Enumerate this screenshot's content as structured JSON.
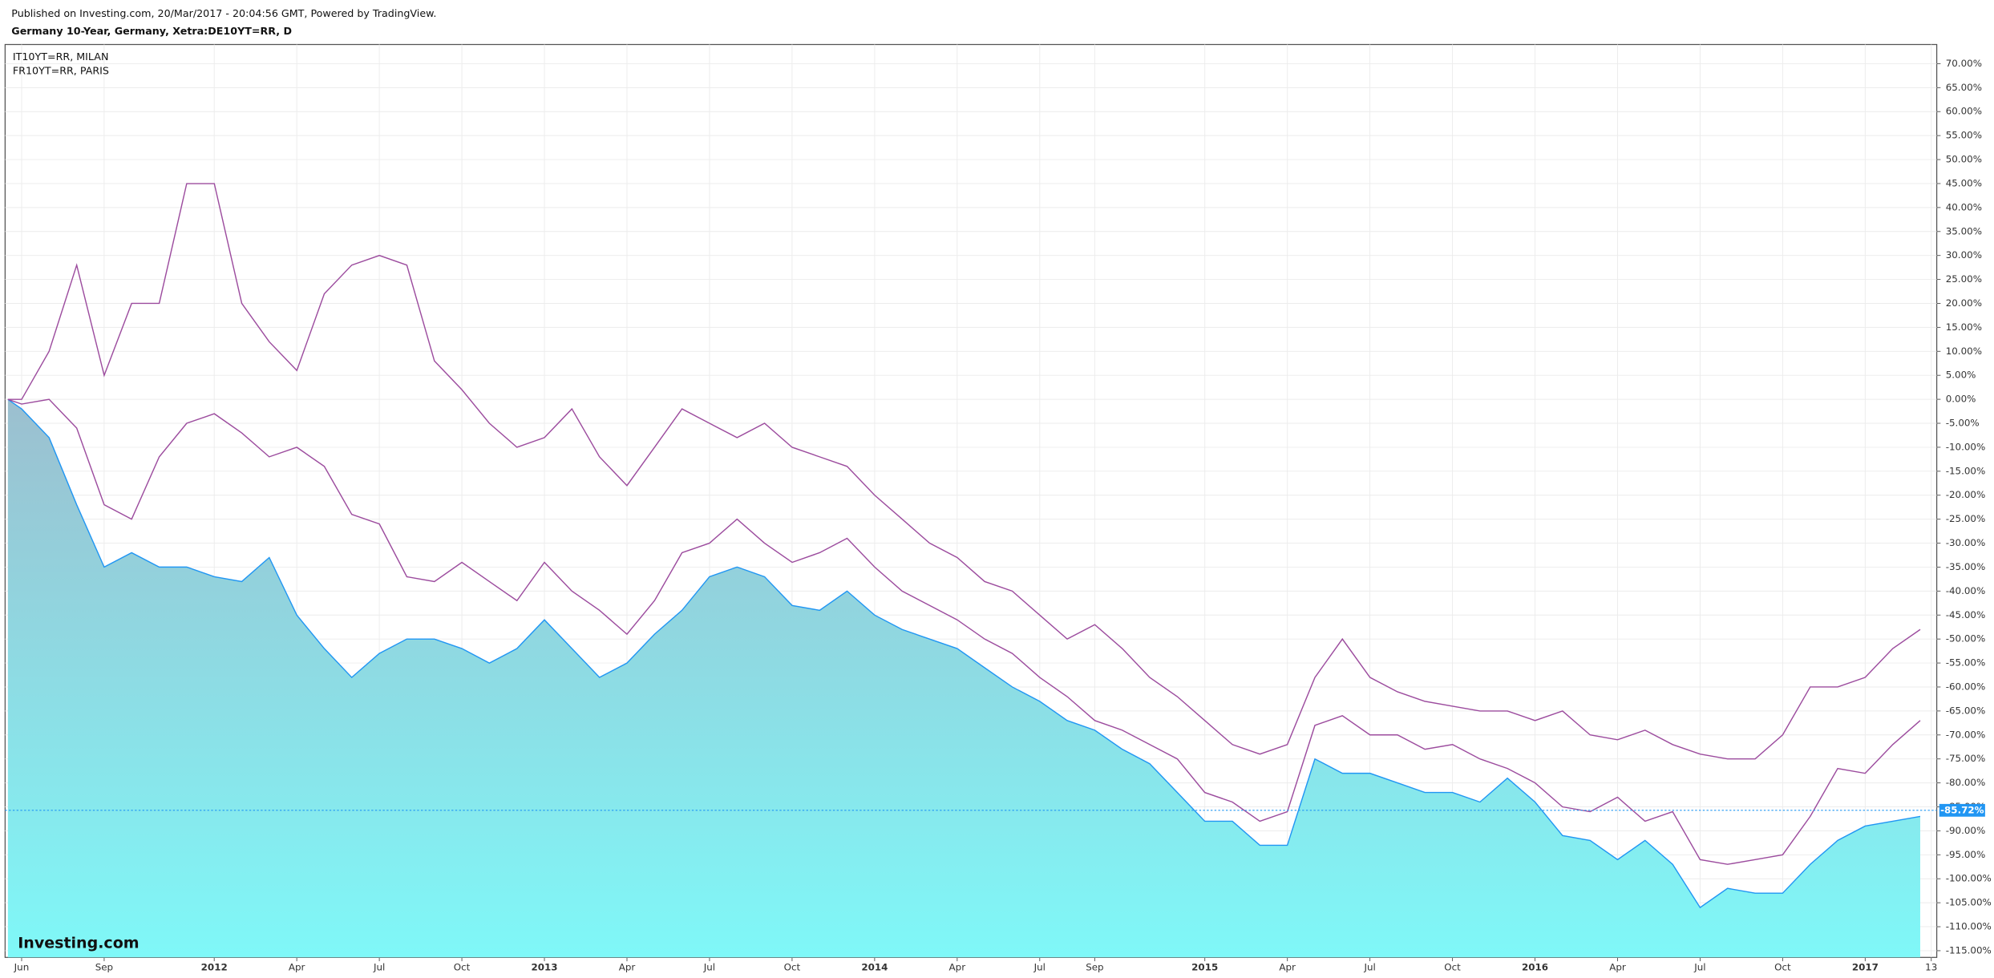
{
  "chart_data": {
    "type": "line",
    "published": "Published on Investing.com, 20/Mar/2017 - 20:04:56 GMT, Powered by TradingView.",
    "title": "Germany 10-Year, Germany, Xetra:DE10YT=RR, D",
    "watermark": "Investing.com",
    "x": [
      -0.5,
      0,
      1,
      2,
      3,
      4,
      5,
      6,
      7,
      8,
      9,
      10,
      11,
      12,
      13,
      14,
      15,
      16,
      17,
      18,
      19,
      20,
      21,
      22,
      23,
      24,
      25,
      26,
      27,
      28,
      29,
      30,
      31,
      32,
      33,
      34,
      35,
      36,
      37,
      38,
      39,
      40,
      41,
      42,
      43,
      44,
      45,
      46,
      47,
      48,
      49,
      50,
      51,
      52,
      53,
      54,
      55,
      56,
      57,
      58,
      59,
      60,
      61,
      62,
      63,
      64,
      65,
      66,
      67,
      68,
      69
    ],
    "series": [
      {
        "area": true,
        "color": "#2196f3",
        "values": [
          0,
          -2,
          -8,
          -22,
          -35,
          -32,
          -35,
          -35,
          -37,
          -38,
          -33,
          -45,
          -52,
          -58,
          -53,
          -50,
          -50,
          -52,
          -55,
          -52,
          -46,
          -52,
          -58,
          -55,
          -49,
          -44,
          -37,
          -35,
          -37,
          -43,
          -44,
          -40,
          -45,
          -48,
          -50,
          -52,
          -56,
          -60,
          -63,
          -67,
          -69,
          -73,
          -76,
          -82,
          -88,
          -88,
          -93,
          -93,
          -75,
          -78,
          -78,
          -80,
          -82,
          -82,
          -84,
          -79,
          -84,
          -91,
          -92,
          -96,
          -92,
          -97,
          -106,
          -102,
          -103,
          -103,
          -97,
          -92,
          -89,
          -88,
          -87
        ]
      },
      {
        "name": "IT10YT=RR, MILAN",
        "color": "#9c4c9e",
        "values": [
          0,
          0,
          10,
          28,
          5,
          20,
          20,
          45,
          45,
          20,
          12,
          6,
          22,
          28,
          30,
          28,
          8,
          2,
          -5,
          -10,
          -8,
          -2,
          -12,
          -18,
          -10,
          -2,
          -5,
          -8,
          -5,
          -10,
          -12,
          -14,
          -20,
          -25,
          -30,
          -33,
          -38,
          -40,
          -45,
          -50,
          -47,
          -52,
          -58,
          -62,
          -67,
          -72,
          -74,
          -72,
          -58,
          -50,
          -58,
          -61,
          -63,
          -64,
          -65,
          -65,
          -67,
          -65,
          -70,
          -71,
          -69,
          -72,
          -74,
          -75,
          -75,
          -70,
          -60,
          -60,
          -58,
          -52,
          -48
        ]
      },
      {
        "name": "FR10YT=RR, PARIS",
        "color": "#9c4c9e",
        "values": [
          0,
          -1,
          0,
          -6,
          -22,
          -25,
          -12,
          -5,
          -3,
          -7,
          -12,
          -10,
          -14,
          -24,
          -26,
          -37,
          -38,
          -34,
          -38,
          -42,
          -34,
          -40,
          -44,
          -49,
          -42,
          -32,
          -30,
          -25,
          -30,
          -34,
          -32,
          -29,
          -35,
          -40,
          -43,
          -46,
          -50,
          -53,
          -58,
          -62,
          -67,
          -69,
          -72,
          -75,
          -82,
          -84,
          -88,
          -86,
          -68,
          -66,
          -70,
          -70,
          -73,
          -72,
          -75,
          -77,
          -80,
          -85,
          -86,
          -83,
          -88,
          -86,
          -96,
          -97,
          -96,
          -95,
          -87,
          -77,
          -78,
          -72,
          -67
        ]
      }
    ],
    "area_gradient": [
      "#9cbfcf",
      "#7ff8f8"
    ],
    "last_value": {
      "value": -85.72,
      "label": "-85.72%"
    },
    "xlim": [
      -0.6,
      69.6
    ],
    "xticks": [
      {
        "value": 0,
        "label": "Jun"
      },
      {
        "value": 3,
        "label": "Sep"
      },
      {
        "value": 7,
        "label": "2012"
      },
      {
        "value": 10,
        "label": "Apr"
      },
      {
        "value": 13,
        "label": "Jul"
      },
      {
        "value": 16,
        "label": "Oct"
      },
      {
        "value": 19,
        "label": "2013"
      },
      {
        "value": 22,
        "label": "Apr"
      },
      {
        "value": 25,
        "label": "Jul"
      },
      {
        "value": 28,
        "label": "Oct"
      },
      {
        "value": 31,
        "label": "2014"
      },
      {
        "value": 34,
        "label": "Apr"
      },
      {
        "value": 37,
        "label": "Jul"
      },
      {
        "value": 39,
        "label": "Sep"
      },
      {
        "value": 43,
        "label": "2015"
      },
      {
        "value": 46,
        "label": "Apr"
      },
      {
        "value": 49,
        "label": "Jul"
      },
      {
        "value": 52,
        "label": "Oct"
      },
      {
        "value": 55,
        "label": "2016"
      },
      {
        "value": 58,
        "label": "Apr"
      },
      {
        "value": 61,
        "label": "Jul"
      },
      {
        "value": 64,
        "label": "Oct"
      },
      {
        "value": 67,
        "label": "2017"
      },
      {
        "value": 69.4,
        "label": "13"
      }
    ],
    "ylim": [
      -116.4,
      74
    ],
    "yticks": [
      {
        "value": 70,
        "label": "70.00%"
      },
      {
        "value": 65,
        "label": "65.00%"
      },
      {
        "value": 60,
        "label": "60.00%"
      },
      {
        "value": 55,
        "label": "55.00%"
      },
      {
        "value": 50,
        "label": "50.00%"
      },
      {
        "value": 45,
        "label": "45.00%"
      },
      {
        "value": 40,
        "label": "40.00%"
      },
      {
        "value": 35,
        "label": "35.00%"
      },
      {
        "value": 30,
        "label": "30.00%"
      },
      {
        "value": 25,
        "label": "25.00%"
      },
      {
        "value": 20,
        "label": "20.00%"
      },
      {
        "value": 15,
        "label": "15.00%"
      },
      {
        "value": 10,
        "label": "10.00%"
      },
      {
        "value": 5,
        "label": "5.00%"
      },
      {
        "value": 0,
        "label": "0.00%"
      },
      {
        "value": -5,
        "label": "-5.00%"
      },
      {
        "value": -10,
        "label": "-10.00%"
      },
      {
        "value": -15,
        "label": "-15.00%"
      },
      {
        "value": -20,
        "label": "-20.00%"
      },
      {
        "value": -25,
        "label": "-25.00%"
      },
      {
        "value": -30,
        "label": "-30.00%"
      },
      {
        "value": -35,
        "label": "-35.00%"
      },
      {
        "value": -40,
        "label": "-40.00%"
      },
      {
        "value": -45,
        "label": "-45.00%"
      },
      {
        "value": -50,
        "label": "-50.00%"
      },
      {
        "value": -55,
        "label": "-55.00%"
      },
      {
        "value": -60,
        "label": "-60.00%"
      },
      {
        "value": -65,
        "label": "-65.00%"
      },
      {
        "value": -70,
        "label": "-70.00%"
      },
      {
        "value": -75,
        "label": "-75.00%"
      },
      {
        "value": -80,
        "label": "-80.00%"
      },
      {
        "value": -85,
        "label": "-85.00%"
      },
      {
        "value": -90,
        "label": "-90.00%"
      },
      {
        "value": -95,
        "label": "-95.00%"
      },
      {
        "value": -100,
        "label": "-100.00%"
      },
      {
        "value": -105,
        "label": "-105.00%"
      },
      {
        "value": -110,
        "label": "-110.00%"
      },
      {
        "value": -115,
        "label": "-115.00%"
      }
    ],
    "grid": true
  }
}
